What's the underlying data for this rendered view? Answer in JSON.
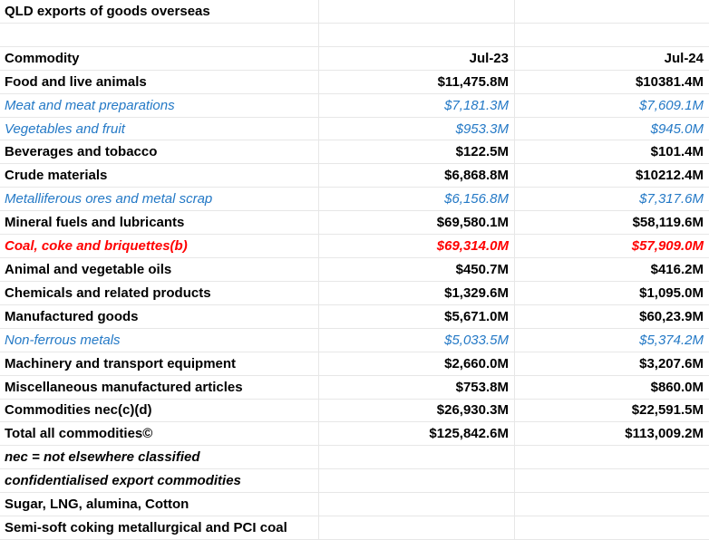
{
  "sheet_title": "QLD exports of goods overseas",
  "colors": {
    "black_text": "#000000",
    "blue_subitem": "#2479c6",
    "red_highlight": "#ff0000",
    "gridline": "#e7e7e7",
    "background": "#ffffff"
  },
  "header": {
    "commodity": "Commodity",
    "jul23": "Jul-23",
    "jul24": "Jul-24"
  },
  "rows": [
    {
      "label": "QLD exports of goods overseas",
      "jul23": "",
      "jul24": ""
    },
    {
      "label": "",
      "jul23": "",
      "jul24": ""
    },
    {
      "label": "Commodity",
      "jul23": "Jul-23",
      "jul24": "Jul-24"
    },
    {
      "label": "Food and live animals",
      "jul23": "$11,475.8M",
      "jul24": "$10381.4M"
    },
    {
      "label": "Meat and meat preparations",
      "jul23": "$7,181.3M",
      "jul24": "$7,609.1M"
    },
    {
      "label": "Vegetables and fruit",
      "jul23": "$953.3M",
      "jul24": "$945.0M"
    },
    {
      "label": "Beverages and tobacco",
      "jul23": "$122.5M",
      "jul24": "$101.4M"
    },
    {
      "label": "Crude materials",
      "jul23": "$6,868.8M",
      "jul24": "$10212.4M"
    },
    {
      "label": "Metalliferous ores and metal scrap",
      "jul23": "$6,156.8M",
      "jul24": "$7,317.6M"
    },
    {
      "label": "Mineral fuels and lubricants",
      "jul23": "$69,580.1M",
      "jul24": "$58,119.6M"
    },
    {
      "label": "Coal, coke and briquettes(b)",
      "jul23": "$69,314.0M",
      "jul24": "$57,909.0M"
    },
    {
      "label": "Animal and vegetable oils",
      "jul23": "$450.7M",
      "jul24": "$416.2M"
    },
    {
      "label": "Chemicals and related products",
      "jul23": "$1,329.6M",
      "jul24": "$1,095.0M"
    },
    {
      "label": "Manufactured goods",
      "jul23": "$5,671.0M",
      "jul24": "$60,23.9M"
    },
    {
      "label": "Non-ferrous metals",
      "jul23": "$5,033.5M",
      "jul24": "$5,374.2M"
    },
    {
      "label": "Machinery and transport equipment",
      "jul23": "$2,660.0M",
      "jul24": "$3,207.6M"
    },
    {
      "label": "Miscellaneous manufactured articles",
      "jul23": "$753.8M",
      "jul24": "$860.0M"
    },
    {
      "label": "Commodities nec(c)(d)",
      "jul23": "$26,930.3M",
      "jul24": "$22,591.5M"
    },
    {
      "label": "Total all commodities©",
      "jul23": "$125,842.6M",
      "jul24": "$113,009.2M"
    },
    {
      "label": "nec = not elsewhere classified",
      "jul23": "",
      "jul24": ""
    },
    {
      "label": "confidentialised export commodities",
      "jul23": "",
      "jul24": ""
    },
    {
      "label": "Sugar, LNG, alumina, Cotton",
      "jul23": "",
      "jul24": ""
    },
    {
      "label": "Semi-soft coking metallurgical and PCI coal",
      "jul23": "",
      "jul24": ""
    }
  ]
}
